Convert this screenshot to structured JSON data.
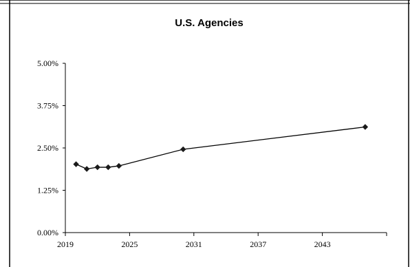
{
  "chart_data": {
    "type": "line",
    "title": "U.S. Agencies",
    "xlabel": "",
    "ylabel": "",
    "xlim": [
      2019,
      2049
    ],
    "ylim": [
      0,
      5
    ],
    "x_ticks": [
      2019,
      2025,
      2031,
      2037,
      2043
    ],
    "x_tick_labels": [
      "2019",
      "2025",
      "2031",
      "2037",
      "2043"
    ],
    "y_ticks": [
      0,
      1.25,
      2.5,
      3.75,
      5
    ],
    "y_tick_labels": [
      "0.00%",
      "1.25%",
      "2.50%",
      "3.75%",
      "5.00%"
    ],
    "grid": false,
    "legend": "none",
    "series": [
      {
        "x": [
          2020,
          2021,
          2022,
          2023,
          2024,
          2030,
          2047
        ],
        "values": [
          2.02,
          1.88,
          1.93,
          1.93,
          1.97,
          2.46,
          3.12
        ]
      }
    ],
    "colors": {
      "line": "#000000",
      "marker": "#1a1a1a",
      "axis": "#000000",
      "border": "#000000"
    }
  }
}
